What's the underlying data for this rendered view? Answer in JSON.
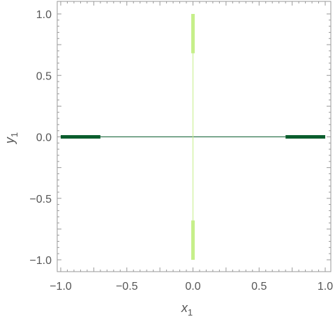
{
  "chart_data": {
    "type": "line",
    "title": "",
    "xlabel": {
      "base": "x",
      "sub": "1"
    },
    "ylabel": {
      "base": "y",
      "sub": "1"
    },
    "xlim": [
      -1.0,
      1.0
    ],
    "ylim": [
      -1.0,
      1.0
    ],
    "x_ticks": [
      -1.0,
      -0.5,
      0.0,
      0.5,
      1.0
    ],
    "y_ticks": [
      -1.0,
      -0.5,
      0.0,
      0.5,
      1.0
    ],
    "x_tick_labels": [
      "−1.0",
      "−0.5",
      "0.0",
      "0.5",
      "1.0"
    ],
    "y_tick_labels": [
      "−1.0",
      "−0.5",
      "0.0",
      "0.5",
      "1.0"
    ],
    "grid": false,
    "frame": true,
    "series": [
      {
        "color": "#0b5e2e",
        "segments": [
          {
            "x": [
              -1.0,
              -0.7
            ],
            "y": [
              0.0,
              0.0
            ],
            "weight": "thick"
          },
          {
            "x": [
              -0.7,
              0.7
            ],
            "y": [
              0.0,
              0.0
            ],
            "weight": "thin"
          },
          {
            "x": [
              0.7,
              1.0
            ],
            "y": [
              0.0,
              0.0
            ],
            "weight": "thick"
          }
        ]
      },
      {
        "color": "#c6ef8a",
        "segments": [
          {
            "x": [
              0.0,
              0.0
            ],
            "y": [
              0.68,
              1.0
            ],
            "weight": "thick"
          },
          {
            "x": [
              0.0,
              0.0
            ],
            "y": [
              -0.68,
              0.68
            ],
            "weight": "thin"
          },
          {
            "x": [
              0.0,
              0.0
            ],
            "y": [
              -1.0,
              -0.68
            ],
            "weight": "thick"
          }
        ]
      }
    ]
  }
}
